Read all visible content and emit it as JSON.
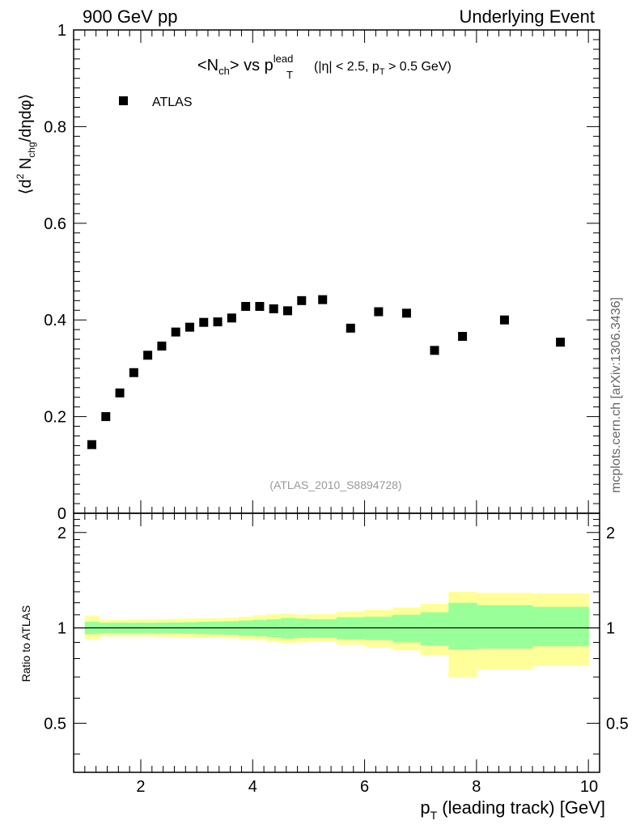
{
  "header": {
    "left": "900 GeV pp",
    "right": "Underlying Event"
  },
  "plot_title": {
    "main": "<N",
    "main_sub": "ch",
    "mid": "> vs p",
    "mid_sup": "lead",
    "mid_sub": "T",
    "cuts_a": "(|η| < 2.5, p",
    "cuts_sub": "T",
    "cuts_b": " > 0.5 GeV)"
  },
  "watermark": "(ATLAS_2010_S8894728)",
  "side_label": "mcplots.cern.ch [arXiv:1306.3436]",
  "chart_data": [
    {
      "type": "scatter",
      "title": "<Nch> vs pT lead (|η| < 2.5, pT > 0.5 GeV)",
      "ylabel": {
        "open": "⟨d",
        "sup": "2",
        "n": " N",
        "sub": "chg",
        "rest": "/dηdφ⟩"
      },
      "xlabel": {
        "p": "p",
        "sub": "T",
        "rest": " (leading track) [GeV]"
      },
      "xlim": [
        0.8,
        10.2
      ],
      "ylim": [
        0,
        1
      ],
      "yticks": [
        0,
        0.2,
        0.4,
        0.6,
        0.8,
        1
      ],
      "ytick_labels": [
        "0",
        "0.2",
        "0.4",
        "0.6",
        "0.8",
        "1"
      ],
      "legend": {
        "position": "top-left",
        "entries": [
          "ATLAS"
        ]
      },
      "series": [
        {
          "name": "ATLAS",
          "x": [
            1.125,
            1.375,
            1.625,
            1.875,
            2.125,
            2.375,
            2.625,
            2.875,
            3.125,
            3.375,
            3.625,
            3.875,
            4.125,
            4.375,
            4.625,
            4.875,
            5.25,
            5.75,
            6.25,
            6.75,
            7.25,
            7.75,
            8.5,
            9.5
          ],
          "y": [
            0.142,
            0.2,
            0.249,
            0.291,
            0.327,
            0.346,
            0.375,
            0.385,
            0.395,
            0.396,
            0.404,
            0.428,
            0.428,
            0.423,
            0.419,
            0.44,
            0.442,
            0.383,
            0.417,
            0.414,
            0.337,
            0.366,
            0.4,
            0.354
          ]
        }
      ]
    },
    {
      "type": "area",
      "ylabel": "Ratio to ATLAS",
      "xlim": [
        0.8,
        10.2
      ],
      "ylim": [
        0.35,
        2.3
      ],
      "yscale": "log",
      "yticks": [
        0.5,
        1,
        2
      ],
      "ytick_labels": [
        "0.5",
        "1",
        "2"
      ],
      "xticks": [
        2,
        4,
        6,
        8,
        10
      ],
      "xtick_labels": [
        "2",
        "4",
        "6",
        "8",
        "10"
      ],
      "reference_line": 1,
      "bin_edges": [
        1.0,
        1.25,
        1.5,
        1.75,
        2.0,
        2.25,
        2.5,
        2.75,
        3.0,
        3.25,
        3.5,
        3.75,
        4.0,
        4.25,
        4.5,
        4.75,
        5.0,
        5.5,
        6.0,
        6.5,
        7.0,
        7.5,
        8.0,
        9.0,
        10.0
      ],
      "bands": [
        {
          "name": "stat",
          "color": "#99ff99",
          "lo": [
            0.955,
            0.962,
            0.962,
            0.962,
            0.962,
            0.961,
            0.96,
            0.958,
            0.955,
            0.953,
            0.95,
            0.945,
            0.94,
            0.935,
            0.925,
            0.93,
            0.935,
            0.92,
            0.915,
            0.9,
            0.88,
            0.855,
            0.86,
            0.875
          ],
          "hi": [
            1.045,
            1.038,
            1.038,
            1.038,
            1.038,
            1.039,
            1.04,
            1.042,
            1.045,
            1.047,
            1.05,
            1.055,
            1.06,
            1.065,
            1.075,
            1.07,
            1.065,
            1.08,
            1.085,
            1.1,
            1.12,
            1.2,
            1.18,
            1.165
          ]
        },
        {
          "name": "syst",
          "color": "#ffff99",
          "lo": [
            0.92,
            0.94,
            0.94,
            0.94,
            0.94,
            0.938,
            0.936,
            0.934,
            0.932,
            0.93,
            0.927,
            0.922,
            0.915,
            0.905,
            0.895,
            0.9,
            0.905,
            0.885,
            0.87,
            0.85,
            0.82,
            0.7,
            0.74,
            0.76
          ],
          "hi": [
            1.09,
            1.06,
            1.06,
            1.062,
            1.064,
            1.066,
            1.068,
            1.07,
            1.072,
            1.074,
            1.078,
            1.085,
            1.095,
            1.105,
            1.11,
            1.1,
            1.105,
            1.125,
            1.14,
            1.16,
            1.19,
            1.3,
            1.29,
            1.285
          ]
        }
      ]
    }
  ]
}
